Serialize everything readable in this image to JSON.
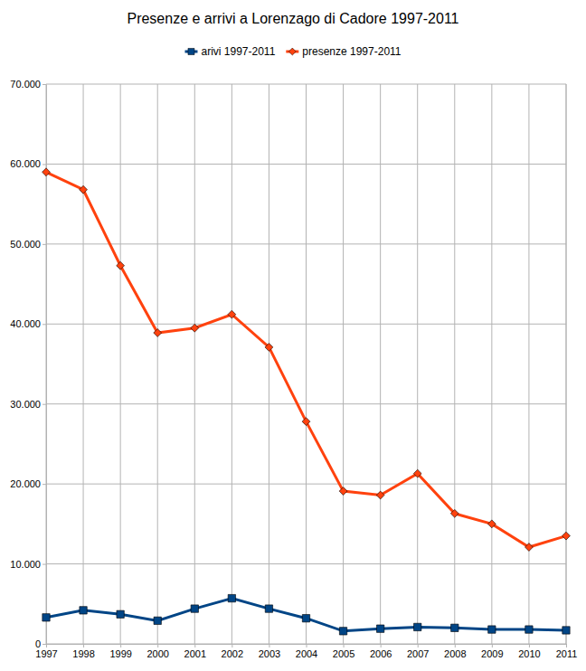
{
  "chart_data": {
    "type": "line",
    "title": "Presenze e arrivi a Lorenzago di Cadore 1997-2011",
    "categories": [
      "1997",
      "1998",
      "1999",
      "2000",
      "2001",
      "2002",
      "2003",
      "2004",
      "2005",
      "2006",
      "2007",
      "2008",
      "2009",
      "2010",
      "2011"
    ],
    "series": [
      {
        "name": "arivi 1997-2011",
        "color": "#004586",
        "marker": "square",
        "values": [
          3300,
          4200,
          3700,
          2900,
          4400,
          5700,
          4400,
          3200,
          1600,
          1900,
          2100,
          2000,
          1800,
          1800,
          1700
        ]
      },
      {
        "name": "presenze 1997-2011",
        "color": "#ff420e",
        "marker": "diamond",
        "values": [
          59000,
          56800,
          47300,
          38900,
          39500,
          41200,
          37100,
          27800,
          19100,
          18600,
          21300,
          16300,
          15000,
          12100,
          13500
        ]
      }
    ],
    "ylim": [
      0,
      70000
    ],
    "yticks": [
      0,
      {
        "value": 10000,
        "label": "10.000"
      },
      {
        "value": 20000,
        "label": "20.000"
      },
      {
        "value": 30000,
        "label": "30.000"
      },
      {
        "value": 40000,
        "label": "40.000"
      },
      {
        "value": 50000,
        "label": "50.000"
      },
      {
        "value": 60000,
        "label": "60.000"
      },
      {
        "value": 70000,
        "label": "70.000"
      }
    ],
    "grid": true,
    "legend": "top"
  }
}
